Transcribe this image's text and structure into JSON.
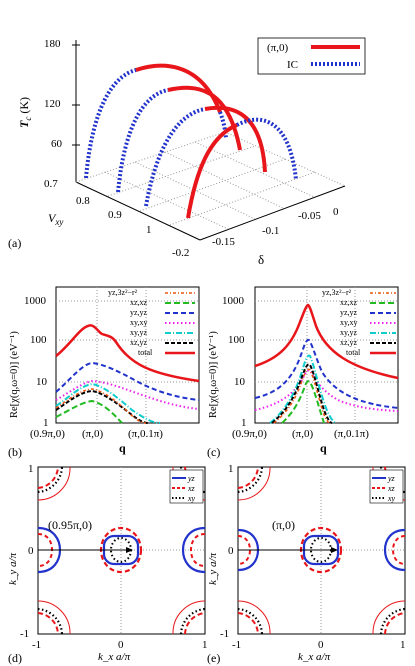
{
  "colors": {
    "red": "#e8161b",
    "blue": "#2233cc",
    "green": "#22bb22",
    "magenta": "#ee22ee",
    "cyan": "#11cccc",
    "orange": "#ee5511",
    "black": "#000000",
    "grid": "#999999"
  },
  "panel_a": {
    "label": "(a)",
    "zlabel_T": "T",
    "zlabel_sub": "c",
    "zlabel_unit": " (K)",
    "ylabel_V": "V",
    "ylabel_sub": "xy",
    "xlabel": "δ",
    "legend": {
      "pi0": "(π,0)",
      "ic": "IC"
    },
    "z_ticks": [
      "180",
      "120",
      "60"
    ],
    "v_ticks": [
      "0.7",
      "0.8",
      "0.9",
      "1"
    ],
    "delta_ticks": [
      "-0.2",
      "-0.15",
      "-0.1",
      "-0.05",
      "0"
    ]
  },
  "panel_b": {
    "label": "(b)",
    "ylabel": "Re[χ(q,ω=0)] (eV⁻¹)",
    "xlabel": "q",
    "y_ticks": [
      "1000",
      "100",
      "10",
      "1"
    ],
    "x_ticks": [
      "(0.9π,0)",
      "(π,0)",
      "(π,0.1π)"
    ],
    "legend": [
      "yz,3z²−r²",
      "xz,xz",
      "yz,yz",
      "xy,xy",
      "xy,yz",
      "xz,yz",
      "total"
    ]
  },
  "panel_c": {
    "label": "(c)",
    "ylabel": "Re[χ(q,ω=0)] (eV⁻¹)",
    "xlabel": "q",
    "y_ticks": [
      "1000",
      "100",
      "10",
      "1"
    ],
    "x_ticks": [
      "(0.9π,0)",
      "(π,0)",
      "(π,0.1π)"
    ],
    "legend": [
      "yz,3z²−r²",
      "xz,xz",
      "yz,yz",
      "xy,xy",
      "xy,yz",
      "xz,yz",
      "total"
    ]
  },
  "panel_d": {
    "label": "(d)",
    "vector": "(0.95π,0)",
    "ylabel": "k_y a/π",
    "xlabel": "k_x a/π",
    "ticks": [
      "-1",
      "0",
      "1"
    ],
    "legend": [
      "yz",
      "xz",
      "xy"
    ]
  },
  "panel_e": {
    "label": "(e)",
    "vector": "(π,0)",
    "ylabel": "k_y a/π",
    "xlabel": "k_x a/π",
    "ticks": [
      "-1",
      "0",
      "1"
    ],
    "legend": [
      "yz",
      "xz",
      "xy"
    ]
  }
}
